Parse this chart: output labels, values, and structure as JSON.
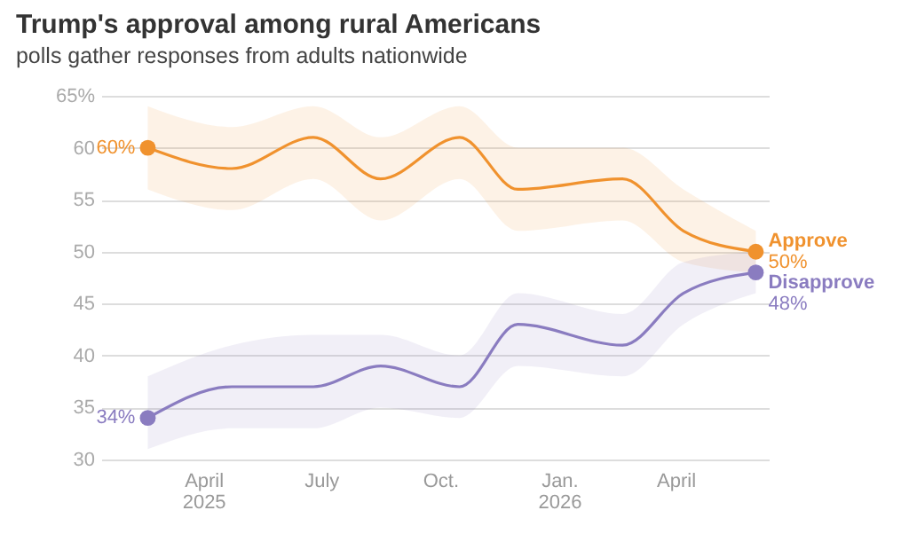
{
  "chart_data": {
    "type": "line",
    "title": "Trump's approval among rural Americans",
    "subtitle": "polls gather responses from adults nationwide",
    "x": [
      "2025-02-17",
      "2025-04-23",
      "2025-06-25",
      "2025-08-16",
      "2025-10-16",
      "2025-11-30",
      "2026-02-19",
      "2026-04-07",
      "2026-06-02"
    ],
    "series": [
      {
        "name": "Approve",
        "color": "#f0922e",
        "values": [
          60,
          58,
          61,
          57,
          61,
          56,
          57,
          52,
          50
        ],
        "lower": [
          56,
          54,
          57,
          53,
          57,
          52,
          53,
          49,
          48
        ],
        "upper": [
          64,
          62,
          64,
          61,
          64,
          60,
          60,
          56,
          52
        ],
        "value_labels": [
          "60%",
          null,
          null,
          null,
          null,
          null,
          null,
          null,
          "50%"
        ]
      },
      {
        "name": "Disapprove",
        "color": "#8a7cc0",
        "values": [
          34,
          37,
          37,
          39,
          37,
          43,
          41,
          46,
          48
        ],
        "lower": [
          31,
          33,
          33,
          35,
          34,
          39,
          38,
          43,
          46
        ],
        "upper": [
          38,
          41,
          42,
          42,
          40,
          46,
          44,
          49,
          50
        ],
        "value_labels": [
          "34%",
          null,
          null,
          null,
          null,
          null,
          null,
          null,
          "48%"
        ]
      }
    ],
    "xlim": [
      "2025-01-12",
      "2026-06-12"
    ],
    "xticks": [
      {
        "value": "2025-04-01",
        "label": "April\n2025"
      },
      {
        "value": "2025-07-01",
        "label": "July"
      },
      {
        "value": "2025-10-01",
        "label": "Oct."
      },
      {
        "value": "2026-01-01",
        "label": "Jan.\n2026"
      },
      {
        "value": "2026-04-01",
        "label": "April"
      }
    ],
    "ylim": [
      30,
      65
    ],
    "yticks": [
      30,
      35,
      40,
      45,
      50,
      55,
      60,
      {
        "value": 65,
        "label": "65%"
      }
    ],
    "grid": "y",
    "legend": false
  }
}
